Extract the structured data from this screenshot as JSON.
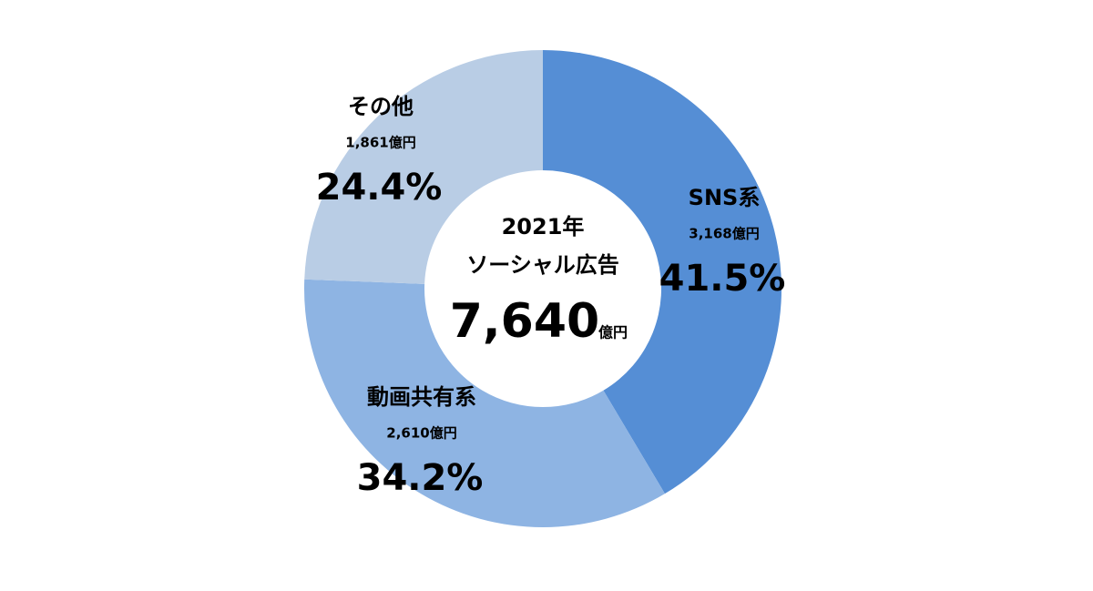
{
  "chart_data": {
    "type": "donut",
    "categories": [
      "SNS系",
      "動画共有系",
      "その他"
    ],
    "values": [
      41.5,
      34.2,
      24.4
    ],
    "value_labels": [
      "41.5%",
      "34.2%",
      "24.4%"
    ],
    "sublabels": [
      "3,168億円",
      "2,610億円",
      "1,861億円"
    ],
    "colors": [
      "#558ed5",
      "#8eb4e3",
      "#b9cde5"
    ],
    "center_lines": [
      "2021年",
      "ソーシャル広告"
    ],
    "center_value": "7,640",
    "center_unit": "億円"
  }
}
